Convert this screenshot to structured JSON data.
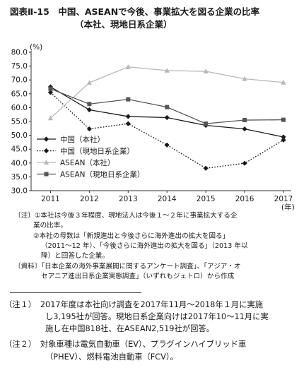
{
  "figure": {
    "title": "図表Ⅱ-15　中国、ASEANで今後、事業拡大を図る企業の比率",
    "subtitle": "（本社、現地日系企業）"
  },
  "chart_data": {
    "type": "line",
    "x": [
      "2011",
      "2012",
      "2013",
      "2014",
      "2015",
      "2016",
      "2017"
    ],
    "xlabel": "(年)",
    "ylabel": "(%)",
    "ylim": [
      30.0,
      80.0
    ],
    "yticks": [
      "30.0",
      "35.0",
      "40.0",
      "45.0",
      "50.0",
      "55.0",
      "60.0",
      "65.0",
      "70.0",
      "75.0",
      "80.0"
    ],
    "grid": false,
    "legend_position": "left",
    "series": [
      {
        "name": "中国（本社）",
        "values": [
          67.5,
          59.2,
          56.8,
          56.4,
          53.6,
          52.3,
          49.4
        ],
        "color": "#1a1a1a",
        "style": "solid",
        "marker": "diamond"
      },
      {
        "name": "中国（現地日系企業）",
        "values": [
          65.5,
          52.3,
          54.2,
          46.5,
          38.1,
          39.9,
          48.3
        ],
        "color": "#1a1a1a",
        "style": "dotted",
        "marker": "diamond"
      },
      {
        "name": "ASEAN（本社）",
        "values": [
          56.2,
          69.0,
          74.7,
          73.4,
          73.1,
          70.4,
          69.1
        ],
        "color": "#b8b8b8",
        "style": "solid",
        "marker": "triangle"
      },
      {
        "name": "ASEAN（現地日系企業）",
        "values": [
          66.8,
          61.3,
          63.0,
          60.2,
          54.2,
          55.5,
          55.6
        ],
        "color": "#555555",
        "style": "solid",
        "marker": "square"
      }
    ]
  },
  "notes": {
    "chart_notes": [
      "〔注〕①本社は今後３年程度、現地法人は今後１～２年に事業拡大する企",
      "業の比率。",
      "②本社の母数は「新規進出と今後さらに海外進出の拡大を図る」",
      "（2011～12 年）、「今後さらに海外進出の拡大を図る」（2013 年以",
      "降）と回答した企業。",
      "〔資料〕「日本企業の海外事業展開に関するアンケート調査」、「アジア・オ",
      "セアニア進出日系企業実態調査」（いずれもジェトロ）から作成"
    ],
    "footnotes": [
      "（注１）　2017年度は本社向け調査を2017年11月～2018年１月に実施",
      "し3,195社が回答。現地日系企業向けは2017年10～11月に実",
      "施し在中国818社、在ASEAN2,519社が回答。",
      "（注２）　対象車種は電気自動車（EV）、プラグインハイブリッド車",
      "（PHEV）、燃料電池自動車（FCV）。"
    ]
  }
}
